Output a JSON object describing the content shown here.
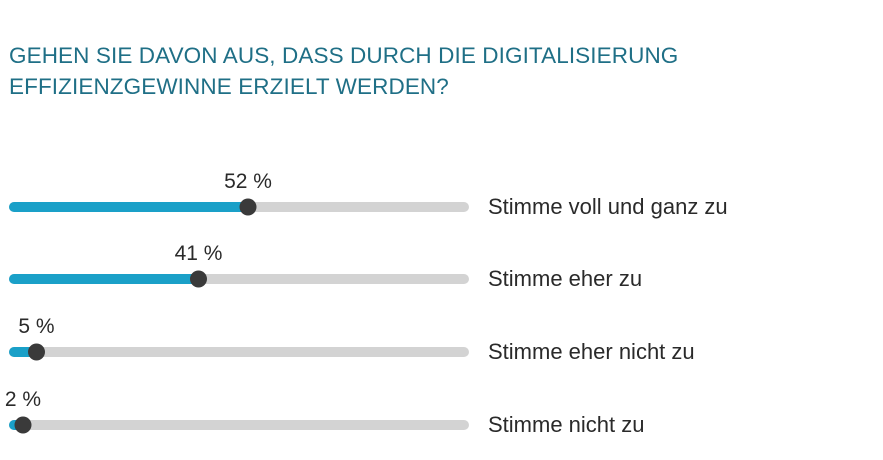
{
  "title_lines": [
    "GEHEN SIE DAVON AUS, DASS DURCH DIE DIGITALISIERUNG",
    "EFFIZIENZGEWINNE ERZIELT WERDEN?"
  ],
  "colors": {
    "title": "#1f6f86",
    "fill": "#1aa0c8",
    "track": "#d3d3d3",
    "knob": "#3a3a3a",
    "text": "#2a2a2a"
  },
  "chart_data": {
    "type": "bar",
    "orientation": "horizontal",
    "xlim": [
      0,
      100
    ],
    "categories": [
      "Stimme voll und ganz zu",
      "Stimme eher zu",
      "Stimme eher nicht zu",
      "Stimme nicht zu"
    ],
    "values": [
      52,
      41,
      5,
      2
    ],
    "value_labels": [
      "52 %",
      "41 %",
      "5 %",
      "2 %"
    ]
  }
}
